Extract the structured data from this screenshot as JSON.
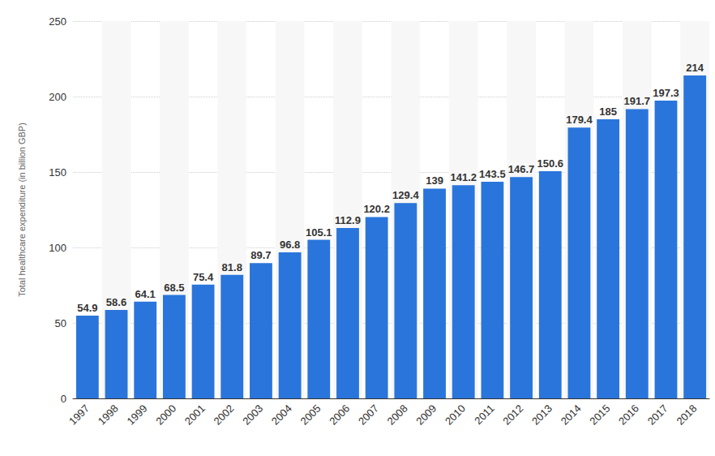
{
  "chart_data": {
    "type": "bar",
    "y_label": "Total healthcare expenditure (in billion GBP)",
    "categories": [
      "1997",
      "1998",
      "1999",
      "2000",
      "2001",
      "2002",
      "2003",
      "2004",
      "2005",
      "2006",
      "2007",
      "2008",
      "2009",
      "2010",
      "2011",
      "2012",
      "2013",
      "2014",
      "2015",
      "2016",
      "2017",
      "2018"
    ],
    "values": [
      54.9,
      58.6,
      64.1,
      68.5,
      75.4,
      81.8,
      89.7,
      96.8,
      105.1,
      112.9,
      120.2,
      129.4,
      139,
      141.2,
      143.5,
      146.7,
      150.6,
      179.4,
      185,
      191.7,
      197.3,
      214
    ],
    "color": "#2a75db",
    "ylim": [
      0,
      250
    ],
    "yticks": [
      0,
      50,
      100,
      150,
      200,
      250
    ],
    "grid": true,
    "data_labels": true
  }
}
